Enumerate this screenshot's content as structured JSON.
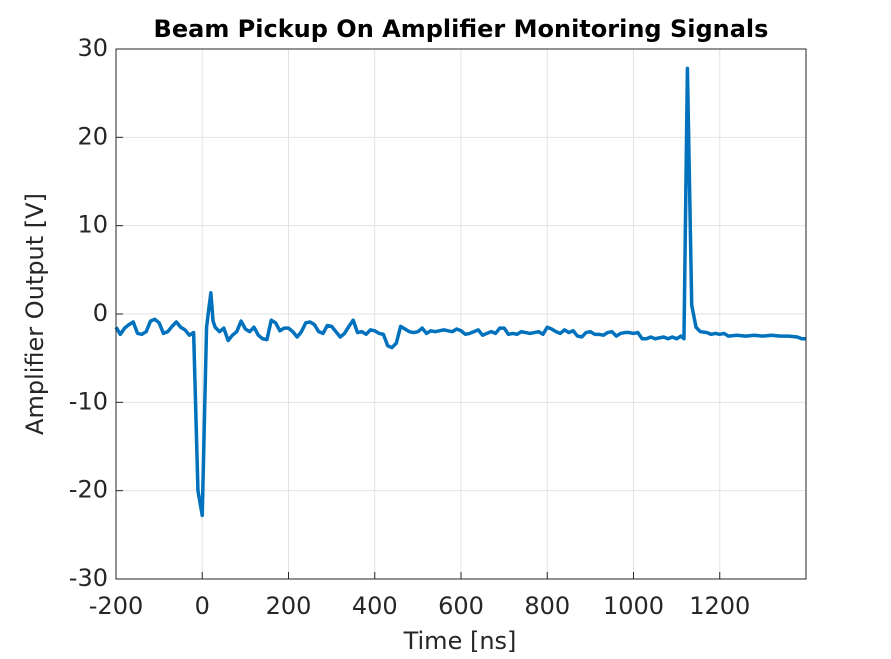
{
  "chart_data": {
    "type": "line",
    "title": "Beam Pickup On Amplifier Monitoring Signals",
    "x_label": "Time [ns]",
    "y_label": "Amplifier Output [V]",
    "color": "#0072bd",
    "grid": true,
    "xlim": [
      -200,
      1400
    ],
    "ylim": [
      -30,
      30
    ],
    "xticks": [
      -200,
      0,
      200,
      400,
      600,
      800,
      1000,
      1200
    ],
    "yticks": [
      -30,
      -20,
      -10,
      0,
      10,
      20,
      30
    ],
    "x": [
      -200,
      -190,
      -180,
      -170,
      -160,
      -150,
      -140,
      -130,
      -120,
      -110,
      -100,
      -90,
      -80,
      -70,
      -60,
      -50,
      -40,
      -30,
      -20,
      -10,
      0,
      5,
      10,
      15,
      20,
      25,
      30,
      40,
      50,
      60,
      70,
      80,
      90,
      100,
      110,
      120,
      130,
      140,
      150,
      160,
      170,
      180,
      190,
      200,
      210,
      220,
      230,
      240,
      250,
      260,
      270,
      280,
      290,
      300,
      310,
      320,
      330,
      340,
      350,
      360,
      370,
      380,
      390,
      400,
      410,
      420,
      430,
      440,
      450,
      460,
      470,
      480,
      490,
      500,
      510,
      520,
      530,
      540,
      550,
      560,
      570,
      580,
      590,
      600,
      610,
      620,
      630,
      640,
      650,
      660,
      670,
      680,
      690,
      700,
      710,
      720,
      730,
      740,
      750,
      760,
      770,
      780,
      790,
      800,
      810,
      820,
      830,
      840,
      850,
      860,
      870,
      880,
      890,
      900,
      910,
      920,
      930,
      940,
      950,
      960,
      970,
      980,
      990,
      1000,
      1010,
      1020,
      1030,
      1040,
      1050,
      1060,
      1070,
      1080,
      1090,
      1100,
      1110,
      1117,
      1125,
      1135,
      1145,
      1155,
      1170,
      1180,
      1190,
      1200,
      1210,
      1220,
      1240,
      1260,
      1280,
      1300,
      1320,
      1340,
      1360,
      1380,
      1390,
      1400
    ],
    "values": [
      -1.5,
      -2.3,
      -1.6,
      -1.2,
      -0.9,
      -2.2,
      -2.3,
      -2.0,
      -0.8,
      -0.6,
      -1.0,
      -2.2,
      -2.0,
      -1.4,
      -0.9,
      -1.5,
      -1.8,
      -2.4,
      -2.1,
      -20.0,
      -22.8,
      -12,
      -1.5,
      0.5,
      2.4,
      -0.8,
      -1.5,
      -2.0,
      -1.6,
      -3.0,
      -2.4,
      -2.0,
      -0.8,
      -1.7,
      -2.0,
      -1.5,
      -2.4,
      -2.8,
      -2.9,
      -0.7,
      -1.0,
      -1.9,
      -1.6,
      -1.6,
      -2.0,
      -2.6,
      -2.0,
      -1.0,
      -0.9,
      -1.2,
      -2.0,
      -2.2,
      -1.3,
      -1.4,
      -2.0,
      -2.6,
      -2.2,
      -1.4,
      -0.7,
      -2.1,
      -2.0,
      -2.3,
      -1.8,
      -1.9,
      -2.2,
      -2.3,
      -3.6,
      -3.8,
      -3.3,
      -1.4,
      -1.7,
      -2.0,
      -2.1,
      -2.0,
      -1.6,
      -2.2,
      -1.9,
      -2.0,
      -1.9,
      -1.8,
      -1.9,
      -2.0,
      -1.7,
      -1.9,
      -2.3,
      -2.2,
      -2.0,
      -1.8,
      -2.4,
      -2.2,
      -2.0,
      -2.2,
      -1.6,
      -1.6,
      -2.3,
      -2.2,
      -2.3,
      -2.0,
      -2.1,
      -2.2,
      -2.1,
      -2.0,
      -2.3,
      -1.5,
      -1.7,
      -2.0,
      -2.2,
      -1.8,
      -2.1,
      -1.9,
      -2.5,
      -2.6,
      -2.1,
      -2.0,
      -2.3,
      -2.3,
      -2.4,
      -2.1,
      -2.0,
      -2.5,
      -2.2,
      -2.1,
      -2.1,
      -2.2,
      -2.1,
      -2.8,
      -2.8,
      -2.6,
      -2.8,
      -2.7,
      -2.6,
      -2.8,
      -2.6,
      -2.8,
      -2.5,
      -2.8,
      27.8,
      1.0,
      -1.5,
      -2.0,
      -2.1,
      -2.3,
      -2.2,
      -2.3,
      -2.2,
      -2.5,
      -2.4,
      -2.5,
      -2.4,
      -2.5,
      -2.4,
      -2.5,
      -2.5,
      -2.6,
      -2.8,
      -2.8
    ]
  }
}
